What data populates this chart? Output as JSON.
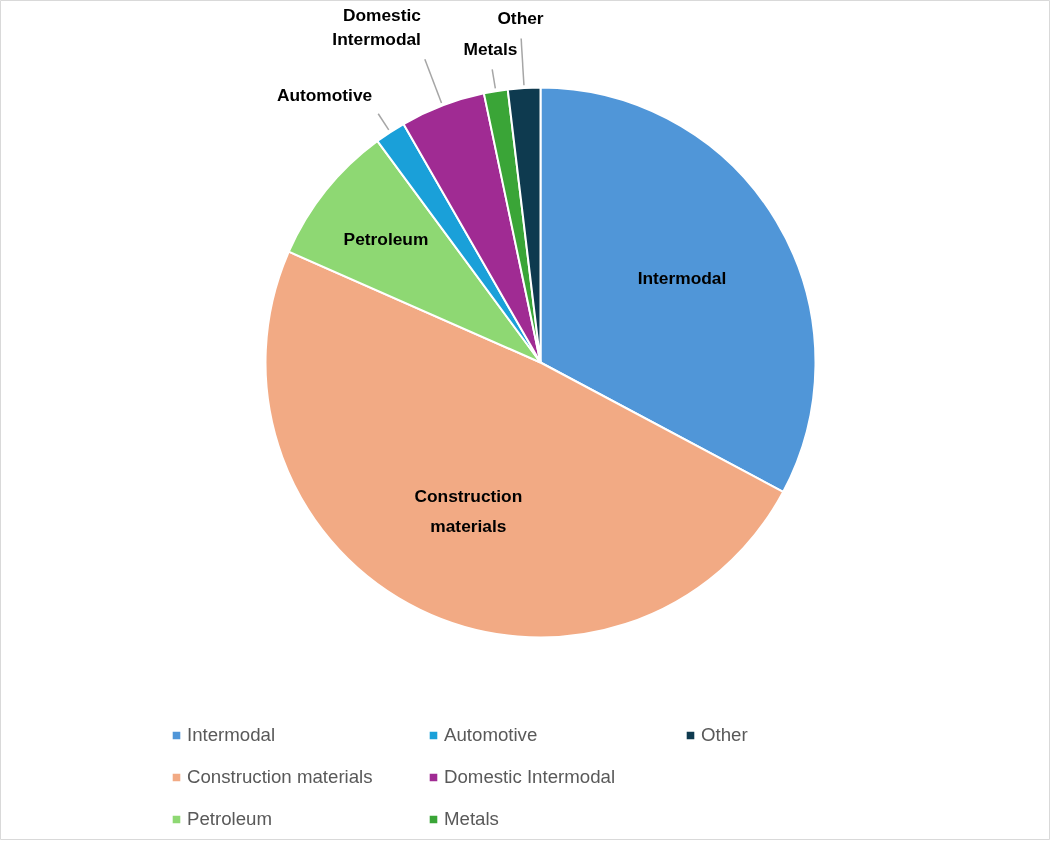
{
  "chart_data": {
    "type": "pie",
    "categories": [
      "Intermodal",
      "Construction materials",
      "Petroleum",
      "Automotive",
      "Domestic Intermodal",
      "Metals",
      "Other"
    ],
    "values": [
      32.8,
      48.8,
      8.3,
      1.8,
      5.0,
      1.4,
      1.9
    ],
    "colors": [
      "#5096d8",
      "#f2aa84",
      "#8ed873",
      "#1aa0d9",
      "#a02b93",
      "#3aa537",
      "#0e3a4f"
    ],
    "legend": "bottom"
  }
}
